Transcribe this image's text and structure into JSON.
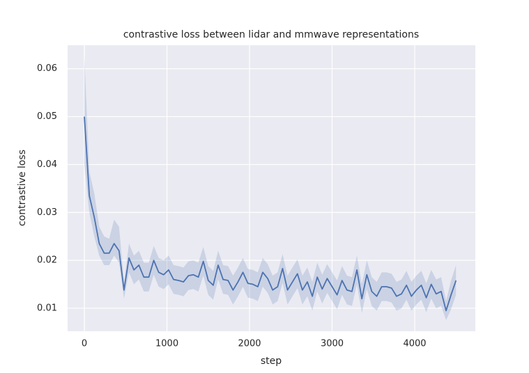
{
  "chart_data": {
    "type": "line",
    "title": "contrastive loss between lidar and mmwave representations",
    "xlabel": "step",
    "ylabel": "contrastive loss",
    "color": "#4c72b0",
    "background": "#eaeaf2",
    "grid": true,
    "xlim": [
      -203,
      4734
    ],
    "ylim": [
      0.0052,
      0.0649
    ],
    "xticks": [
      0,
      1000,
      2000,
      3000,
      4000
    ],
    "yticks": [
      0.01,
      0.02,
      0.03,
      0.04,
      0.05,
      0.06
    ],
    "x": [
      0,
      60,
      120,
      180,
      240,
      300,
      360,
      420,
      480,
      540,
      600,
      660,
      720,
      780,
      840,
      900,
      960,
      1020,
      1080,
      1140,
      1200,
      1260,
      1320,
      1380,
      1440,
      1500,
      1560,
      1620,
      1680,
      1740,
      1800,
      1860,
      1920,
      1980,
      2040,
      2100,
      2160,
      2220,
      2280,
      2340,
      2400,
      2460,
      2520,
      2580,
      2640,
      2700,
      2760,
      2820,
      2880,
      2940,
      3000,
      3060,
      3120,
      3180,
      3240,
      3300,
      3360,
      3420,
      3480,
      3540,
      3600,
      3660,
      3720,
      3780,
      3840,
      3900,
      3960,
      4020,
      4080,
      4140,
      4200,
      4260,
      4320,
      4380,
      4440,
      4500
    ],
    "values": [
      0.05,
      0.0335,
      0.029,
      0.0235,
      0.0215,
      0.0215,
      0.0235,
      0.022,
      0.0138,
      0.0205,
      0.018,
      0.019,
      0.0165,
      0.0165,
      0.02,
      0.0175,
      0.017,
      0.018,
      0.016,
      0.0158,
      0.0155,
      0.0168,
      0.017,
      0.0165,
      0.0198,
      0.0158,
      0.0148,
      0.019,
      0.016,
      0.0158,
      0.0138,
      0.0155,
      0.0175,
      0.0152,
      0.015,
      0.0145,
      0.0175,
      0.0162,
      0.0138,
      0.0145,
      0.0183,
      0.0138,
      0.0155,
      0.0172,
      0.0138,
      0.0155,
      0.0125,
      0.0165,
      0.014,
      0.0162,
      0.0145,
      0.0128,
      0.0158,
      0.0138,
      0.0135,
      0.018,
      0.012,
      0.017,
      0.0135,
      0.0125,
      0.0145,
      0.0145,
      0.0142,
      0.0125,
      0.013,
      0.0148,
      0.0125,
      0.0138,
      0.0148,
      0.0122,
      0.015,
      0.013,
      0.0135,
      0.0095,
      0.0128,
      0.0158
    ],
    "ci_upper": [
      0.0625,
      0.0385,
      0.034,
      0.027,
      0.025,
      0.0245,
      0.0285,
      0.027,
      0.0155,
      0.0235,
      0.021,
      0.022,
      0.0195,
      0.0195,
      0.023,
      0.0205,
      0.02,
      0.021,
      0.019,
      0.0188,
      0.0185,
      0.0198,
      0.02,
      0.0195,
      0.0228,
      0.0188,
      0.0178,
      0.022,
      0.019,
      0.0188,
      0.0168,
      0.0185,
      0.0205,
      0.0182,
      0.018,
      0.0175,
      0.0205,
      0.0192,
      0.0168,
      0.0175,
      0.0213,
      0.0168,
      0.0185,
      0.0202,
      0.0168,
      0.0185,
      0.0155,
      0.0195,
      0.017,
      0.0192,
      0.0175,
      0.0158,
      0.0188,
      0.0168,
      0.0165,
      0.021,
      0.015,
      0.02,
      0.0165,
      0.0155,
      0.0175,
      0.0175,
      0.0172,
      0.0155,
      0.016,
      0.0178,
      0.0155,
      0.0168,
      0.0178,
      0.0152,
      0.018,
      0.016,
      0.0165,
      0.0115,
      0.0158,
      0.019
    ],
    "ci_lower": [
      0.04,
      0.03,
      0.025,
      0.021,
      0.019,
      0.019,
      0.021,
      0.0195,
      0.012,
      0.0175,
      0.015,
      0.016,
      0.0135,
      0.0135,
      0.017,
      0.0145,
      0.014,
      0.015,
      0.013,
      0.0128,
      0.0125,
      0.0138,
      0.014,
      0.0135,
      0.0168,
      0.0128,
      0.0118,
      0.016,
      0.013,
      0.0128,
      0.0108,
      0.0125,
      0.0145,
      0.0122,
      0.012,
      0.0115,
      0.0145,
      0.0132,
      0.0108,
      0.0115,
      0.0153,
      0.0108,
      0.0125,
      0.0142,
      0.0108,
      0.0125,
      0.0095,
      0.0135,
      0.011,
      0.0132,
      0.0115,
      0.0098,
      0.0128,
      0.0108,
      0.0105,
      0.015,
      0.009,
      0.014,
      0.0105,
      0.0095,
      0.0115,
      0.0115,
      0.0112,
      0.0095,
      0.01,
      0.0118,
      0.0095,
      0.0108,
      0.0118,
      0.0092,
      0.012,
      0.01,
      0.0105,
      0.0075,
      0.0098,
      0.0128
    ]
  }
}
